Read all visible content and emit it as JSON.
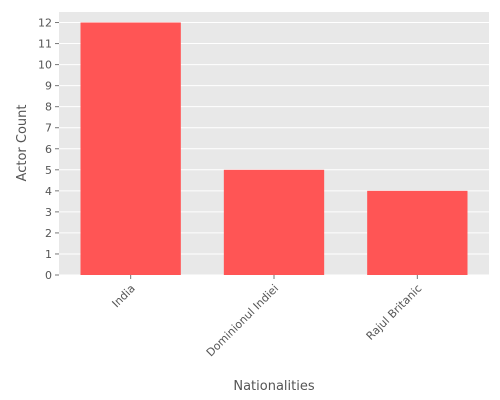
{
  "chart_data": {
    "type": "bar",
    "categories": [
      "India",
      "Dominionul Indiei",
      "Rajul Britanic"
    ],
    "values": [
      12,
      5,
      4
    ],
    "title": "",
    "xlabel": "Nationalities",
    "ylabel": "Actor Count",
    "ylim": [
      0,
      12.5
    ],
    "yticks": [
      0,
      1,
      2,
      3,
      4,
      5,
      6,
      7,
      8,
      9,
      10,
      11,
      12
    ],
    "grid": true,
    "colors": {
      "bar": "#ff5555",
      "plot_background": "#e8e8e8",
      "grid": "#ffffff",
      "text": "#555555"
    }
  }
}
